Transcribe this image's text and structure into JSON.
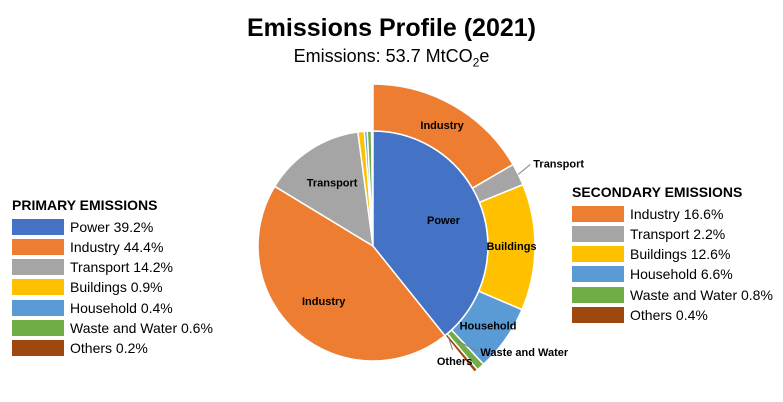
{
  "chart_data": {
    "type": "pie",
    "title": "Emissions Profile (2021)",
    "subtitle": {
      "prefix": "Emissions: 53.7 MtCO",
      "subscript": "2",
      "suffix": "e"
    },
    "primary": {
      "legend_title": "PRIMARY EMISSIONS",
      "slices": [
        {
          "name": "Power",
          "value": 39.2,
          "legend": "Power 39.2%",
          "label": "Power",
          "color": "#4472C4"
        },
        {
          "name": "Industry",
          "value": 44.4,
          "legend": "Industry 44.4%",
          "label": "Industry",
          "color": "#ED7D31"
        },
        {
          "name": "Transport",
          "value": 14.2,
          "legend": "Transport 14.2%",
          "label": "Transport",
          "color": "#A5A5A5"
        },
        {
          "name": "Buildings",
          "value": 0.9,
          "legend": "Buildings 0.9%",
          "label": "",
          "color": "#FFC000"
        },
        {
          "name": "Household",
          "value": 0.4,
          "legend": "Household 0.4%",
          "label": "",
          "color": "#5B9BD5"
        },
        {
          "name": "Waste and Water",
          "value": 0.6,
          "legend": "Waste and Water 0.6%",
          "label": "",
          "color": "#70AD47"
        },
        {
          "name": "Others",
          "value": 0.2,
          "legend": "Others 0.2%",
          "label": "",
          "color": "#9E480E"
        }
      ]
    },
    "secondary": {
      "legend_title": "SECONDARY EMISSIONS",
      "slices": [
        {
          "name": "Industry",
          "value": 16.6,
          "legend": "Industry 16.6%",
          "label": "Industry",
          "color": "#ED7D31"
        },
        {
          "name": "Transport",
          "value": 2.2,
          "legend": "Transport 2.2%",
          "label": "Transport",
          "color": "#A5A5A5"
        },
        {
          "name": "Buildings",
          "value": 12.6,
          "legend": "Buildings 12.6%",
          "label": "Buildings",
          "color": "#FFC000"
        },
        {
          "name": "Household",
          "value": 6.6,
          "legend": "Household 6.6%",
          "label": "Household",
          "color": "#5B9BD5"
        },
        {
          "name": "Waste and Water",
          "value": 0.8,
          "legend": "Waste and Water 0.8%",
          "label": "Waste and Water",
          "color": "#70AD47"
        },
        {
          "name": "Others",
          "value": 0.4,
          "legend": "Others 0.4%",
          "label": "Others",
          "color": "#9E480E"
        }
      ]
    },
    "legend_placement": [
      "left",
      "right"
    ]
  }
}
